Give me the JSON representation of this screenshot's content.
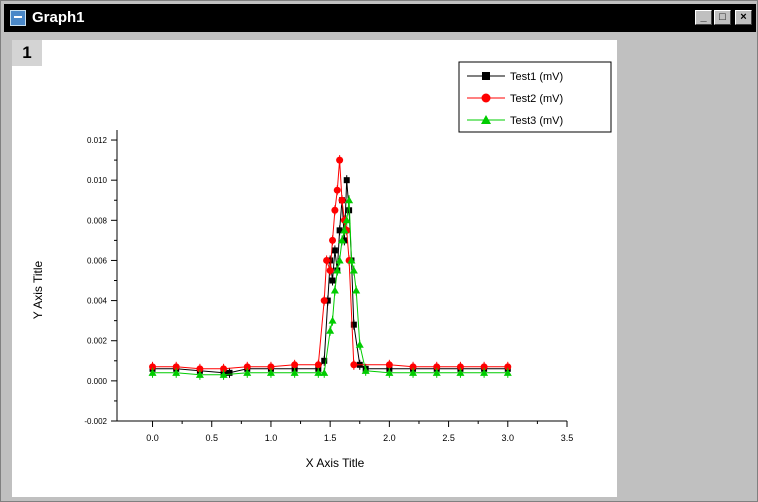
{
  "window": {
    "title": "Graph1",
    "minimize": "_",
    "maximize": "□",
    "close": "×"
  },
  "layer": {
    "label": "1"
  },
  "colors": {
    "test1": "#000000",
    "test2": "#ff0000",
    "test3": "#00cc00"
  },
  "chart_data": {
    "type": "line",
    "xlabel": "X Axis Title",
    "ylabel": "Y Axis Title",
    "xlim": [
      -0.3,
      3.5
    ],
    "ylim": [
      -0.002,
      0.0125
    ],
    "x_ticks": [
      0.0,
      0.5,
      1.0,
      1.5,
      2.0,
      2.5,
      3.0,
      3.5
    ],
    "x_tick_labels": [
      "0.0",
      "0.5",
      "1.0",
      "1.5",
      "2.0",
      "2.5",
      "3.0",
      "3.5"
    ],
    "y_ticks": [
      -0.002,
      0.0,
      0.002,
      0.004,
      0.006,
      0.008,
      0.01,
      0.012
    ],
    "y_tick_labels": [
      "-0.002",
      "0.000",
      "0.002",
      "0.004",
      "0.006",
      "0.008",
      "0.010",
      "0.012"
    ],
    "legend_position": "top-right",
    "series": [
      {
        "name": "Test1 (mV)",
        "marker": "square",
        "x": [
          0.0,
          0.2,
          0.4,
          0.6,
          0.65,
          0.8,
          1.0,
          1.2,
          1.4,
          1.45,
          1.48,
          1.5,
          1.52,
          1.54,
          1.56,
          1.58,
          1.6,
          1.62,
          1.64,
          1.66,
          1.68,
          1.7,
          1.75,
          1.8,
          2.0,
          2.2,
          2.4,
          2.6,
          2.8,
          3.0
        ],
        "y": [
          0.0006,
          0.0006,
          0.0005,
          0.0004,
          0.0004,
          0.0006,
          0.0006,
          0.0006,
          0.0006,
          0.001,
          0.004,
          0.006,
          0.005,
          0.0065,
          0.0055,
          0.0075,
          0.009,
          0.007,
          0.01,
          0.0085,
          0.006,
          0.0028,
          0.0008,
          0.0006,
          0.0006,
          0.0006,
          0.0006,
          0.0006,
          0.0006,
          0.0006
        ]
      },
      {
        "name": "Test2 (mV)",
        "marker": "circle",
        "x": [
          0.0,
          0.2,
          0.4,
          0.6,
          0.8,
          1.0,
          1.2,
          1.4,
          1.45,
          1.47,
          1.5,
          1.52,
          1.54,
          1.56,
          1.58,
          1.6,
          1.62,
          1.64,
          1.66,
          1.7,
          2.0,
          2.2,
          2.4,
          2.6,
          2.8,
          3.0
        ],
        "y": [
          0.0007,
          0.0007,
          0.0006,
          0.0006,
          0.0007,
          0.0007,
          0.0008,
          0.0008,
          0.004,
          0.006,
          0.0055,
          0.007,
          0.0085,
          0.0095,
          0.011,
          0.009,
          0.008,
          0.0075,
          0.006,
          0.0008,
          0.0008,
          0.0007,
          0.0007,
          0.0007,
          0.0007,
          0.0007
        ]
      },
      {
        "name": "Test3 (mV)",
        "marker": "triangle",
        "x": [
          0.0,
          0.2,
          0.4,
          0.6,
          0.8,
          1.0,
          1.2,
          1.4,
          1.45,
          1.5,
          1.52,
          1.54,
          1.56,
          1.58,
          1.6,
          1.62,
          1.64,
          1.66,
          1.68,
          1.7,
          1.72,
          1.75,
          1.8,
          2.0,
          2.2,
          2.4,
          2.6,
          2.8,
          3.0
        ],
        "y": [
          0.0004,
          0.0004,
          0.0003,
          0.0003,
          0.0004,
          0.0004,
          0.0004,
          0.0004,
          0.0004,
          0.0025,
          0.003,
          0.0045,
          0.0055,
          0.006,
          0.007,
          0.0075,
          0.008,
          0.009,
          0.006,
          0.0055,
          0.0045,
          0.0018,
          0.0005,
          0.0004,
          0.0004,
          0.0004,
          0.0004,
          0.0004,
          0.0004
        ]
      }
    ]
  }
}
